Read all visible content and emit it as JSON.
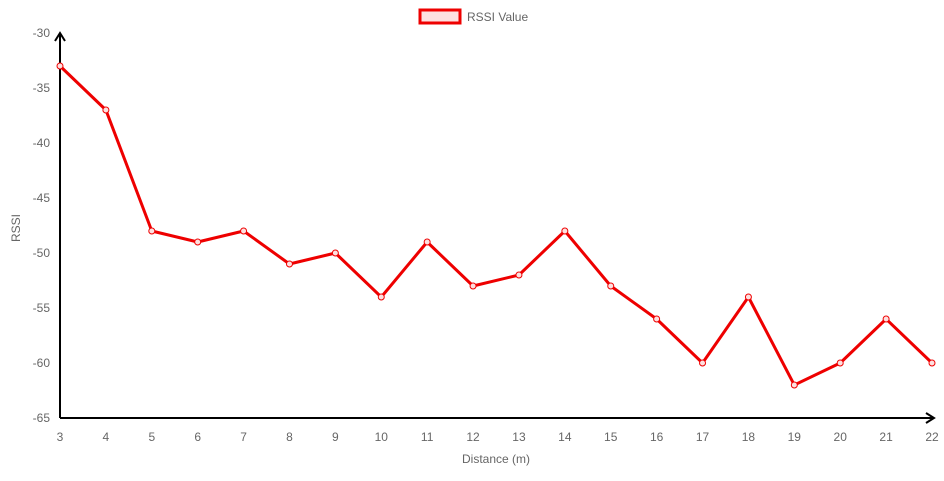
{
  "chart_data": {
    "type": "line",
    "x": [
      3,
      4,
      5,
      6,
      7,
      8,
      9,
      10,
      11,
      12,
      13,
      14,
      15,
      16,
      17,
      18,
      19,
      20,
      21,
      22
    ],
    "series": [
      {
        "name": "RSSI Value",
        "values": [
          -33,
          -37,
          -48,
          -49,
          -48,
          -51,
          -50,
          -54,
          -49,
          -53,
          -52,
          -48,
          -53,
          -56,
          -60,
          -54,
          -62,
          -60,
          -56,
          -60
        ]
      }
    ],
    "xlabel": "Distance (m)",
    "ylabel": "RSSI",
    "xticks": [
      "3",
      "4",
      "5",
      "6",
      "7",
      "8",
      "9",
      "10",
      "11",
      "12",
      "13",
      "14",
      "15",
      "16",
      "17",
      "18",
      "19",
      "20",
      "21",
      "22"
    ],
    "yticks": [
      "-30",
      "-35",
      "-40",
      "-45",
      "-50",
      "-55",
      "-60",
      "-65"
    ],
    "ylim": [
      -65,
      -30
    ],
    "xlim": [
      3,
      22
    ],
    "grid": false,
    "legend_position": "top",
    "colors": {
      "line": "#ee0000",
      "point_fill": "#fde0e0",
      "axis": "#000000",
      "text": "#666666"
    }
  }
}
